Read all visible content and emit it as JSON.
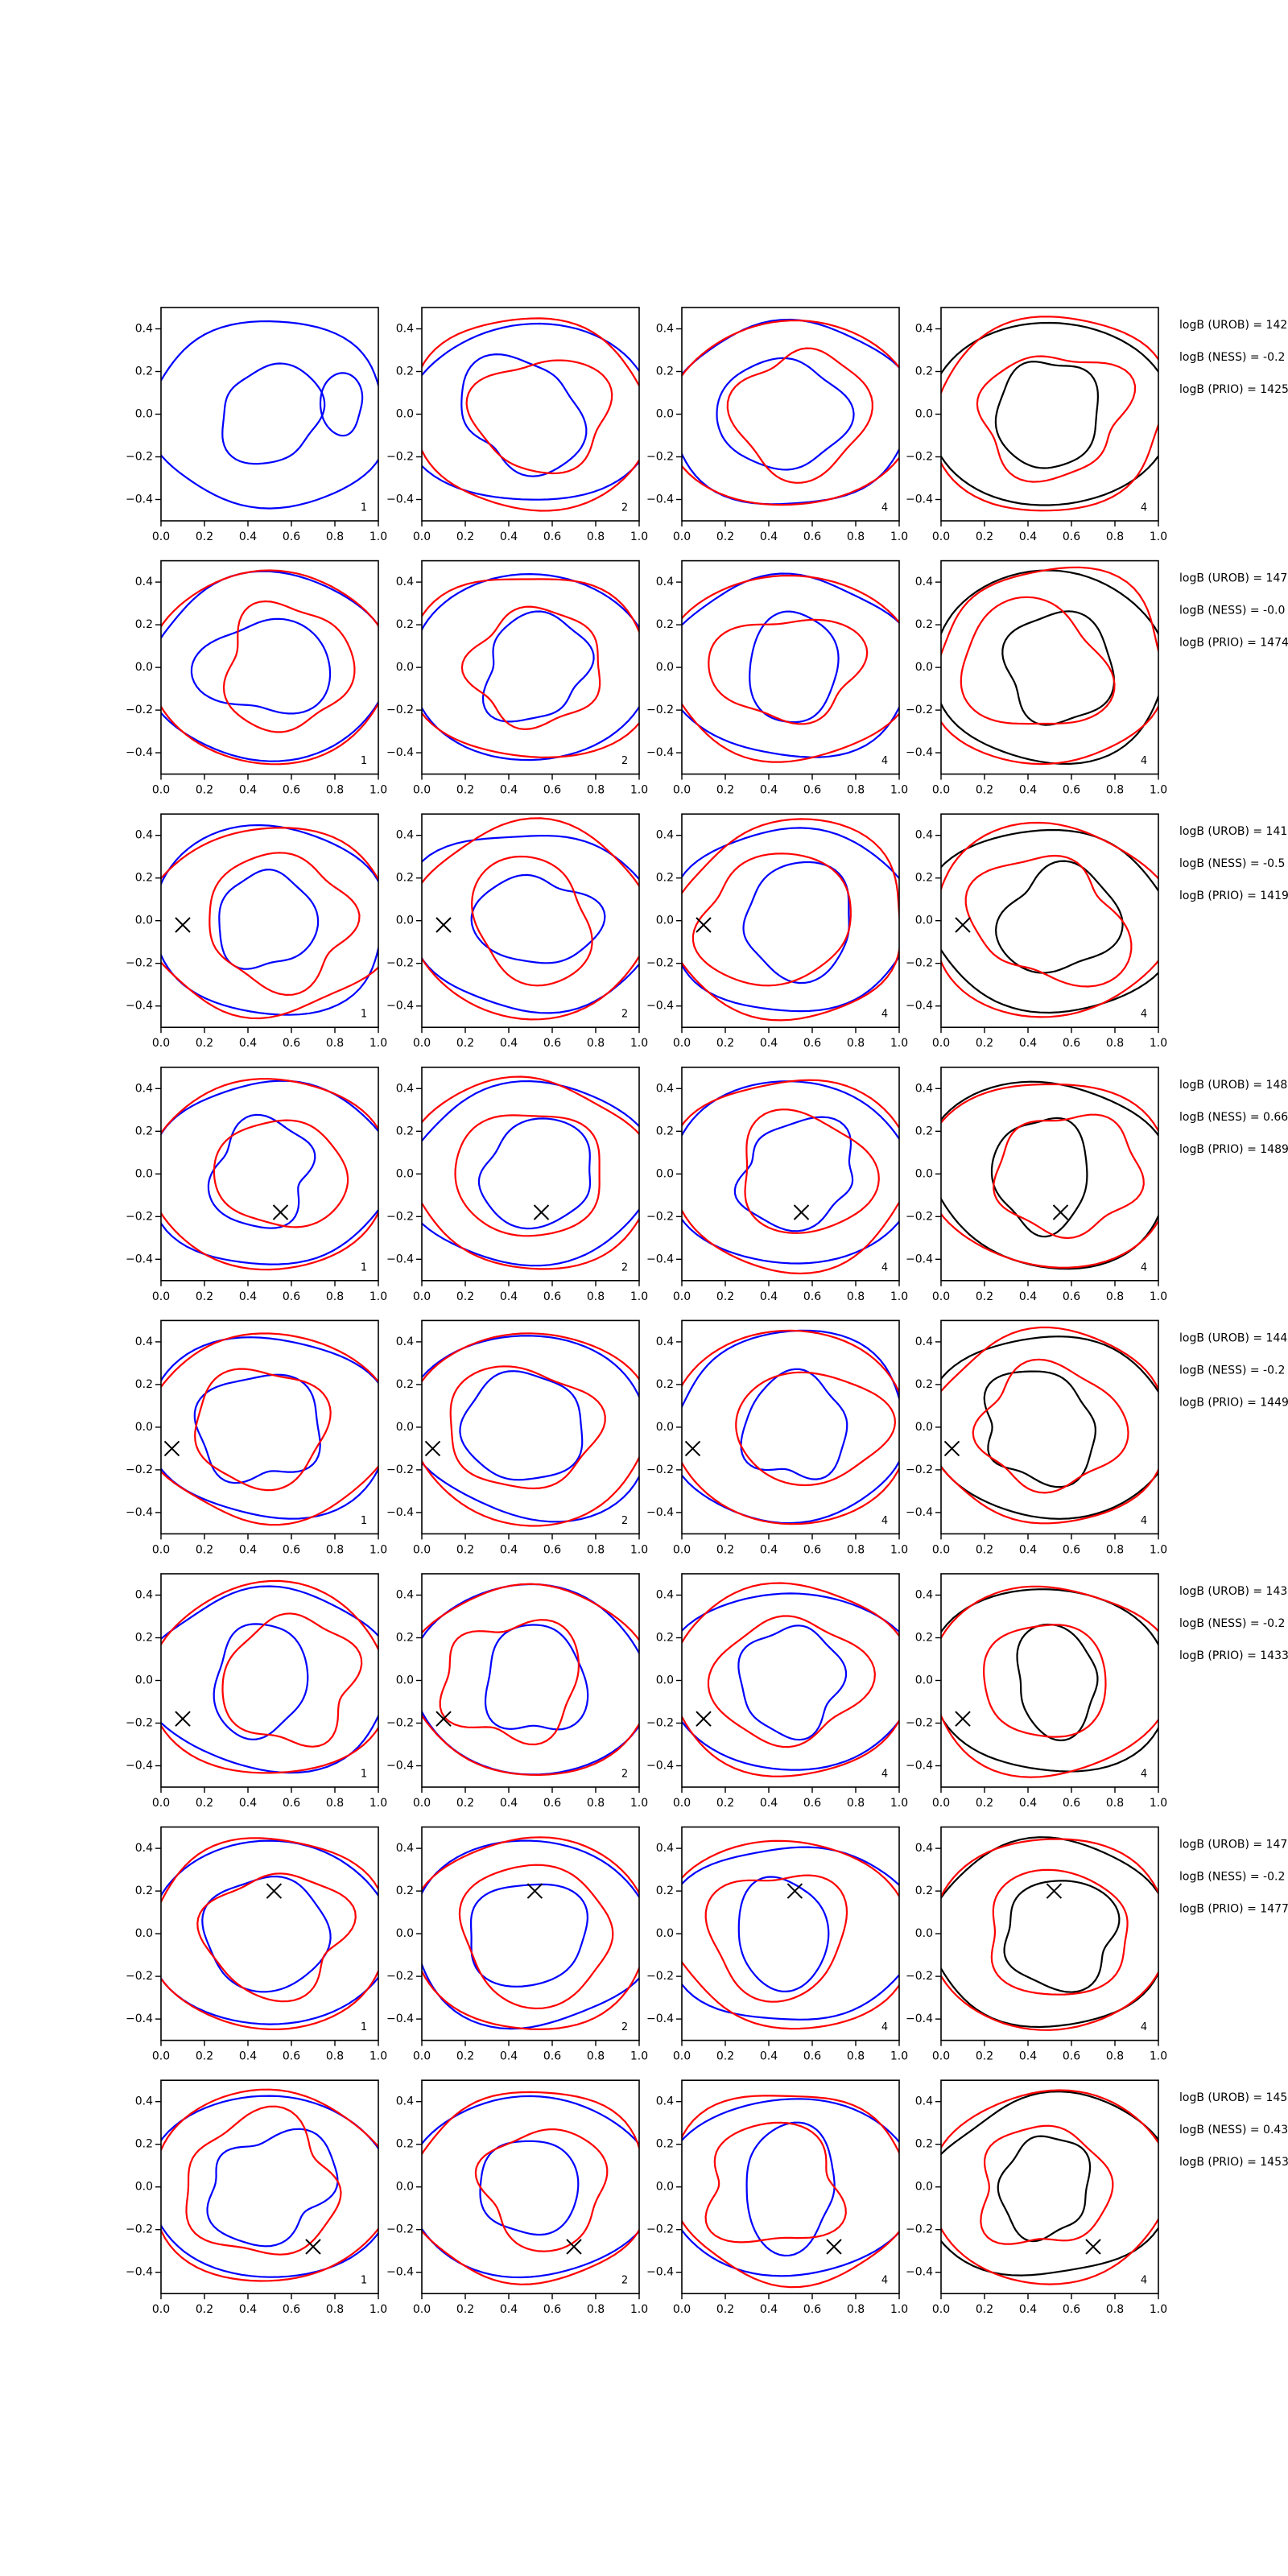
{
  "shared_axes": {
    "xlim": [
      0,
      1
    ],
    "ylim": [
      -0.5,
      0.5
    ],
    "xticks": [
      {
        "value": 0,
        "label": "0.0"
      },
      {
        "value": 0.2,
        "label": "0.2"
      },
      {
        "value": 0.4,
        "label": "0.4"
      },
      {
        "value": 0.6,
        "label": "0.6"
      },
      {
        "value": 0.8,
        "label": "0.8"
      },
      {
        "value": 1,
        "label": "1.0"
      }
    ],
    "yticks": [
      {
        "value": -0.4,
        "label": "−0.4"
      },
      {
        "value": -0.2,
        "label": "−0.2"
      },
      {
        "value": 0,
        "label": "0.0"
      },
      {
        "value": 0.2,
        "label": "0.2"
      },
      {
        "value": 0.4,
        "label": "0.4"
      }
    ]
  },
  "chart_data": [
    {
      "type": "contour",
      "panel_label": "1"
    },
    {
      "type": "contour",
      "panel_label": "2"
    },
    {
      "type": "contour",
      "panel_label": "4"
    },
    {
      "type": "contour",
      "panel_label": "4"
    },
    {
      "type": "contour",
      "panel_label": "1"
    },
    {
      "type": "contour",
      "panel_label": "2"
    },
    {
      "type": "contour",
      "panel_label": "4"
    },
    {
      "type": "contour",
      "panel_label": "4"
    },
    {
      "type": "contour",
      "panel_label": "1",
      "marker": {
        "x": 0.1,
        "y": -0.02
      }
    },
    {
      "type": "contour",
      "panel_label": "2",
      "marker": {
        "x": 0.1,
        "y": -0.02
      }
    },
    {
      "type": "contour",
      "panel_label": "4",
      "marker": {
        "x": 0.1,
        "y": -0.02
      }
    },
    {
      "type": "contour",
      "panel_label": "4",
      "marker": {
        "x": 0.1,
        "y": -0.02
      }
    },
    {
      "type": "contour",
      "panel_label": "1",
      "marker": {
        "x": 0.55,
        "y": -0.18
      }
    },
    {
      "type": "contour",
      "panel_label": "2",
      "marker": {
        "x": 0.55,
        "y": -0.18
      }
    },
    {
      "type": "contour",
      "panel_label": "4",
      "marker": {
        "x": 0.55,
        "y": -0.18
      }
    },
    {
      "type": "contour",
      "panel_label": "4",
      "marker": {
        "x": 0.55,
        "y": -0.18
      }
    },
    {
      "type": "contour",
      "panel_label": "1",
      "marker": {
        "x": 0.05,
        "y": -0.1
      }
    },
    {
      "type": "contour",
      "panel_label": "2",
      "marker": {
        "x": 0.05,
        "y": -0.1
      }
    },
    {
      "type": "contour",
      "panel_label": "4",
      "marker": {
        "x": 0.05,
        "y": -0.1
      }
    },
    {
      "type": "contour",
      "panel_label": "4",
      "marker": {
        "x": 0.05,
        "y": -0.1
      }
    },
    {
      "type": "contour",
      "panel_label": "1",
      "marker": {
        "x": 0.1,
        "y": -0.18
      }
    },
    {
      "type": "contour",
      "panel_label": "2",
      "marker": {
        "x": 0.1,
        "y": -0.18
      }
    },
    {
      "type": "contour",
      "panel_label": "4",
      "marker": {
        "x": 0.1,
        "y": -0.18
      }
    },
    {
      "type": "contour",
      "panel_label": "4",
      "marker": {
        "x": 0.1,
        "y": -0.18
      }
    },
    {
      "type": "contour",
      "panel_label": "1",
      "marker": {
        "x": 0.52,
        "y": 0.2
      }
    },
    {
      "type": "contour",
      "panel_label": "2",
      "marker": {
        "x": 0.52,
        "y": 0.2
      }
    },
    {
      "type": "contour",
      "panel_label": "4",
      "marker": {
        "x": 0.52,
        "y": 0.2
      }
    },
    {
      "type": "contour",
      "panel_label": "4",
      "marker": {
        "x": 0.52,
        "y": 0.2
      }
    },
    {
      "type": "contour",
      "panel_label": "1",
      "marker": {
        "x": 0.7,
        "y": -0.28
      }
    },
    {
      "type": "contour",
      "panel_label": "2",
      "marker": {
        "x": 0.7,
        "y": -0.28
      }
    },
    {
      "type": "contour",
      "panel_label": "4",
      "marker": {
        "x": 0.7,
        "y": -0.28
      }
    },
    {
      "type": "contour",
      "panel_label": "4",
      "marker": {
        "x": 0.7,
        "y": -0.28
      }
    }
  ],
  "annotations": [
    [
      "logB (UROB) = 142",
      "logB (NESS) = -0.2",
      "logB (PRIO) = 1425"
    ],
    [
      "logB (UROB) = 147",
      "logB (NESS) = -0.0",
      "logB (PRIO) = 1474"
    ],
    [
      "logB (UROB) = 141",
      "logB (NESS) = -0.5",
      "logB (PRIO) = 1419"
    ],
    [
      "logB (UROB) = 148",
      "logB (NESS) = 0.66",
      "logB (PRIO) = 1489"
    ],
    [
      "logB (UROB) = 144",
      "logB (NESS) = -0.2",
      "logB (PRIO) = 1449"
    ],
    [
      "logB (UROB) = 143",
      "logB (NESS) = -0.2",
      "logB (PRIO) = 1433"
    ],
    [
      "logB (UROB) = 147",
      "logB (NESS) = -0.2",
      "logB (PRIO) = 1477"
    ],
    [
      "logB (UROB) = 145",
      "logB (NESS) = 0.43",
      "logB (PRIO) = 1453"
    ]
  ]
}
